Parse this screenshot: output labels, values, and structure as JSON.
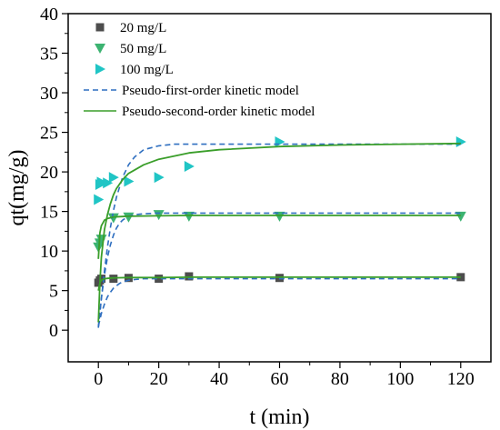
{
  "chart_data": {
    "type": "scatter",
    "xlabel": "t (min)",
    "ylabel": "qt(mg/g)",
    "xlim": [
      -10,
      130
    ],
    "ylim": [
      -4,
      40
    ],
    "xticks": [
      0,
      20,
      40,
      60,
      80,
      100,
      120
    ],
    "yticks": [
      0,
      5,
      10,
      15,
      20,
      25,
      30,
      35,
      40
    ],
    "grid": false,
    "legend_position": "top-left",
    "series": [
      {
        "name": "20 mg/L",
        "kind": "points",
        "marker": "square",
        "color": "#4d4d4d",
        "x": [
          0,
          0.5,
          1,
          5,
          10,
          20,
          30,
          60,
          120
        ],
        "y": [
          6.0,
          6.3,
          6.5,
          6.5,
          6.6,
          6.5,
          6.8,
          6.6,
          6.7
        ]
      },
      {
        "name": "50 mg/L",
        "kind": "points",
        "marker": "triangle-down",
        "color": "#3cb371",
        "x": [
          0,
          0.5,
          1,
          5,
          10,
          20,
          30,
          60,
          120
        ],
        "y": [
          10.5,
          11.0,
          11.5,
          14.2,
          14.3,
          14.6,
          14.4,
          14.4,
          14.4
        ]
      },
      {
        "name": "100 mg/L",
        "kind": "points",
        "marker": "triangle-right",
        "color": "#20c5c5",
        "x": [
          0,
          0.5,
          1,
          3,
          5,
          10,
          20,
          30,
          60,
          120
        ],
        "y": [
          16.5,
          18.4,
          18.7,
          18.6,
          19.3,
          18.8,
          19.3,
          20.7,
          23.8,
          23.8
        ]
      },
      {
        "name": "Pseudo-first-order kinetic model",
        "kind": "dashed-line",
        "color": "#2f6fc0",
        "curves": [
          {
            "x": [
              0,
              1,
              2,
              3,
              4,
              5,
              6,
              7,
              8,
              10,
              12,
              15,
              20,
              25,
              30,
              40,
              60,
              80,
              100,
              120
            ],
            "y": [
              0.5,
              2.1,
              3.3,
              4.2,
              4.8,
              5.3,
              5.6,
              5.9,
              6.1,
              6.3,
              6.4,
              6.5,
              6.5,
              6.5,
              6.5,
              6.5,
              6.5,
              6.5,
              6.5,
              6.5
            ]
          },
          {
            "x": [
              0,
              1,
              2,
              3,
              4,
              5,
              6,
              7,
              8,
              10,
              12,
              15,
              20,
              25,
              30,
              40,
              60,
              80,
              100,
              120
            ],
            "y": [
              0.3,
              4.0,
              7.0,
              9.2,
              10.8,
              12.0,
              12.9,
              13.5,
              13.9,
              14.4,
              14.6,
              14.7,
              14.8,
              14.8,
              14.8,
              14.8,
              14.8,
              14.8,
              14.8,
              14.8
            ]
          },
          {
            "x": [
              0,
              1,
              2,
              3,
              4,
              5,
              6,
              8,
              10,
              12,
              15,
              20,
              25,
              30,
              40,
              60,
              80,
              100,
              120
            ],
            "y": [
              0.4,
              4.0,
              7.5,
              10.5,
              13.0,
              15.1,
              16.8,
              19.3,
              20.9,
              21.9,
              22.8,
              23.3,
              23.5,
              23.5,
              23.5,
              23.5,
              23.5,
              23.5,
              23.5
            ]
          }
        ]
      },
      {
        "name": "Pseudo-second-order kinetic model",
        "kind": "solid-line",
        "color": "#3a9e2a",
        "curves": [
          {
            "x": [
              0,
              0.5,
              1,
              2,
              3,
              5,
              10,
              20,
              30,
              60,
              120
            ],
            "y": [
              5.0,
              6.0,
              6.3,
              6.5,
              6.55,
              6.6,
              6.65,
              6.65,
              6.7,
              6.7,
              6.7
            ]
          },
          {
            "x": [
              0,
              0.5,
              1,
              2,
              3,
              5,
              10,
              20,
              30,
              60,
              120
            ],
            "y": [
              9.0,
              12.3,
              13.2,
              13.9,
              14.1,
              14.3,
              14.4,
              14.45,
              14.5,
              14.5,
              14.5
            ]
          },
          {
            "x": [
              0,
              0.5,
              1,
              2,
              3,
              4,
              5,
              6,
              8,
              10,
              15,
              20,
              25,
              30,
              40,
              60,
              80,
              100,
              120
            ],
            "y": [
              1.0,
              6.0,
              9.2,
              12.7,
              14.6,
              16.0,
              17.1,
              17.9,
              19.0,
              19.8,
              20.9,
              21.6,
              22.0,
              22.4,
              22.8,
              23.2,
              23.4,
              23.5,
              23.6
            ]
          }
        ]
      }
    ]
  }
}
